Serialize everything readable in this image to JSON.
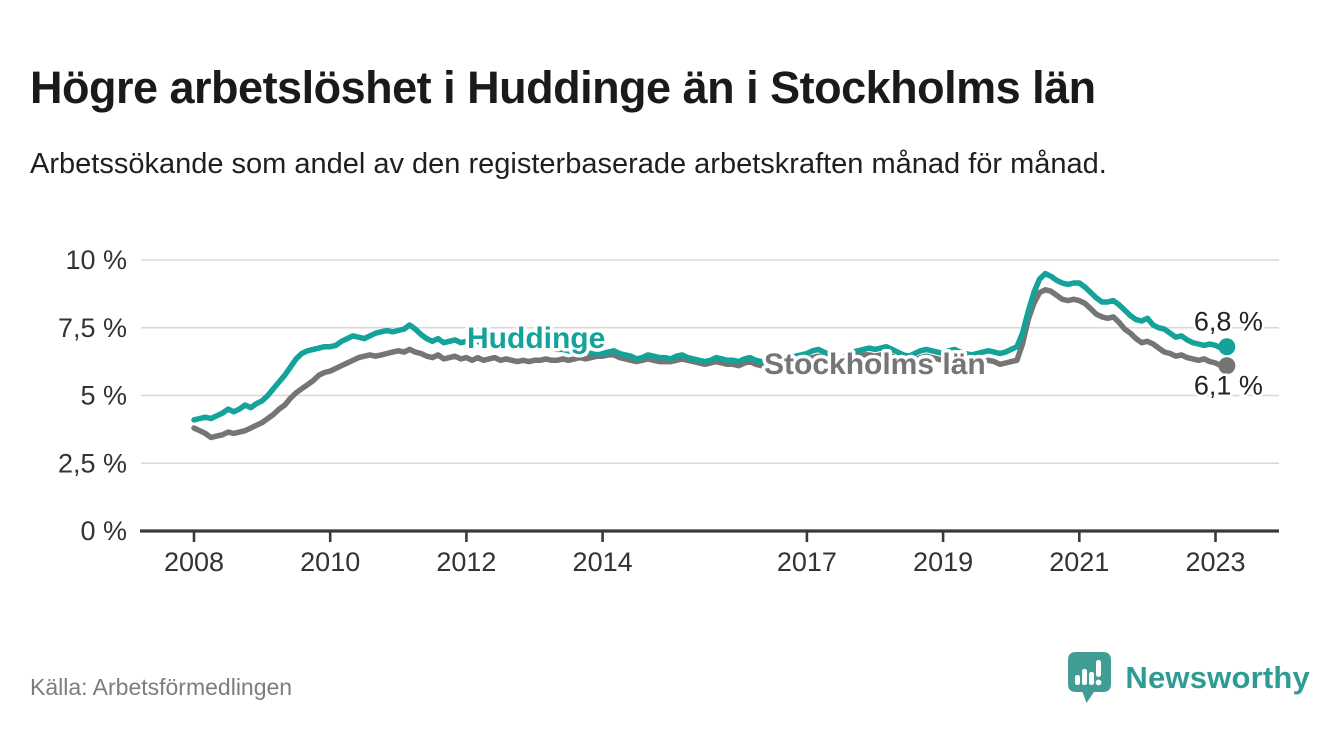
{
  "header": {
    "title": "Högre arbetslöshet i Huddinge än i Stockholms län",
    "subtitle": "Arbetssökande som andel av den registerbaserade arbetskraften månad för månad."
  },
  "footer": {
    "source": "Källa: Arbetsförmedlingen",
    "brand": "Newsworthy"
  },
  "colors": {
    "huddinge": "#14a39a",
    "stockholm": "#757575",
    "grid": "#d8d8d8",
    "axis": "#3a3a3a",
    "tick_text": "#333333",
    "value_text": "#222222",
    "brand_teal": "#2f9c94"
  },
  "chart_data": {
    "type": "line",
    "title": "Högre arbetslöshet i Huddinge än i Stockholms län",
    "subtitle": "Arbetssökande som andel av den registerbaserade arbetskraften månad för månad.",
    "unit": "%",
    "frequency": "monthly",
    "start": "2008-01",
    "end": "2023-03",
    "ylim": [
      0,
      10
    ],
    "grid": "horizontal",
    "legend_position": "inline-labels",
    "y_ticks": [
      {
        "value": 0,
        "label": "0 %"
      },
      {
        "value": 2.5,
        "label": "2,5 %"
      },
      {
        "value": 5,
        "label": "5 %"
      },
      {
        "value": 7.5,
        "label": "7,5 %"
      },
      {
        "value": 10,
        "label": "10 %"
      }
    ],
    "x_tick_years": [
      2008,
      2010,
      2012,
      2014,
      2017,
      2019,
      2021,
      2023
    ],
    "series": [
      {
        "name": "Huddinge",
        "color_key": "huddinge",
        "end_label": "6,8 %",
        "values": [
          4.1,
          4.15,
          4.2,
          4.15,
          4.25,
          4.35,
          4.5,
          4.4,
          4.5,
          4.65,
          4.55,
          4.7,
          4.8,
          5.0,
          5.25,
          5.5,
          5.75,
          6.05,
          6.35,
          6.55,
          6.65,
          6.7,
          6.75,
          6.8,
          6.8,
          6.85,
          7.0,
          7.1,
          7.2,
          7.15,
          7.1,
          7.2,
          7.3,
          7.35,
          7.4,
          7.35,
          7.4,
          7.45,
          7.6,
          7.45,
          7.25,
          7.1,
          7.0,
          7.1,
          6.95,
          7.0,
          7.05,
          6.95,
          7.0,
          6.95,
          7.0,
          6.9,
          6.9,
          6.95,
          6.9,
          6.95,
          6.9,
          6.85,
          6.9,
          6.85,
          6.85,
          6.8,
          6.8,
          6.75,
          6.7,
          6.7,
          6.65,
          6.6,
          6.6,
          6.6,
          6.55,
          6.55,
          6.55,
          6.6,
          6.65,
          6.55,
          6.5,
          6.45,
          6.35,
          6.4,
          6.5,
          6.45,
          6.4,
          6.4,
          6.35,
          6.45,
          6.5,
          6.4,
          6.35,
          6.3,
          6.25,
          6.3,
          6.4,
          6.35,
          6.3,
          6.3,
          6.25,
          6.35,
          6.4,
          6.3,
          6.25,
          6.2,
          6.25,
          6.35,
          6.45,
          6.4,
          6.45,
          6.5,
          6.55,
          6.65,
          6.7,
          6.6,
          6.5,
          6.4,
          6.35,
          6.45,
          6.6,
          6.65,
          6.7,
          6.75,
          6.7,
          6.75,
          6.8,
          6.7,
          6.6,
          6.5,
          6.45,
          6.55,
          6.65,
          6.7,
          6.65,
          6.6,
          6.55,
          6.65,
          6.7,
          6.6,
          6.55,
          6.5,
          6.55,
          6.6,
          6.65,
          6.6,
          6.55,
          6.6,
          6.7,
          6.8,
          7.3,
          8.1,
          8.8,
          9.3,
          9.5,
          9.4,
          9.25,
          9.15,
          9.1,
          9.15,
          9.15,
          9.0,
          8.8,
          8.6,
          8.45,
          8.45,
          8.5,
          8.35,
          8.15,
          7.95,
          7.8,
          7.75,
          7.85,
          7.6,
          7.5,
          7.45,
          7.3,
          7.15,
          7.2,
          7.05,
          6.95,
          6.9,
          6.85,
          6.9,
          6.85,
          6.75,
          6.8
        ]
      },
      {
        "name": "Stockholms län",
        "color_key": "stockholm",
        "end_label": "6,1 %",
        "values": [
          3.8,
          3.7,
          3.6,
          3.45,
          3.5,
          3.55,
          3.65,
          3.6,
          3.65,
          3.7,
          3.8,
          3.9,
          4.0,
          4.15,
          4.3,
          4.5,
          4.65,
          4.9,
          5.1,
          5.25,
          5.4,
          5.55,
          5.75,
          5.85,
          5.9,
          6.0,
          6.1,
          6.2,
          6.3,
          6.4,
          6.45,
          6.5,
          6.45,
          6.5,
          6.55,
          6.6,
          6.65,
          6.6,
          6.7,
          6.6,
          6.55,
          6.45,
          6.4,
          6.5,
          6.35,
          6.4,
          6.45,
          6.35,
          6.4,
          6.3,
          6.4,
          6.3,
          6.35,
          6.4,
          6.3,
          6.35,
          6.3,
          6.25,
          6.3,
          6.25,
          6.3,
          6.3,
          6.35,
          6.3,
          6.3,
          6.35,
          6.3,
          6.35,
          6.4,
          6.35,
          6.4,
          6.45,
          6.45,
          6.5,
          6.5,
          6.4,
          6.35,
          6.3,
          6.25,
          6.3,
          6.35,
          6.3,
          6.25,
          6.25,
          6.25,
          6.3,
          6.35,
          6.3,
          6.25,
          6.2,
          6.15,
          6.2,
          6.25,
          6.2,
          6.15,
          6.15,
          6.1,
          6.2,
          6.25,
          6.15,
          6.1,
          6.05,
          6.1,
          6.15,
          6.25,
          6.2,
          6.25,
          6.3,
          6.35,
          6.4,
          6.45,
          6.4,
          6.3,
          6.25,
          6.2,
          6.3,
          6.4,
          6.45,
          6.5,
          6.5,
          6.45,
          6.5,
          6.55,
          6.45,
          6.35,
          6.3,
          6.25,
          6.3,
          6.4,
          6.45,
          6.4,
          6.35,
          6.3,
          6.35,
          6.4,
          6.3,
          6.25,
          6.2,
          6.2,
          6.25,
          6.3,
          6.25,
          6.15,
          6.2,
          6.25,
          6.3,
          6.9,
          7.8,
          8.4,
          8.8,
          8.9,
          8.85,
          8.7,
          8.55,
          8.5,
          8.55,
          8.5,
          8.4,
          8.2,
          8.0,
          7.9,
          7.85,
          7.9,
          7.7,
          7.45,
          7.3,
          7.1,
          6.95,
          7.0,
          6.9,
          6.75,
          6.6,
          6.55,
          6.45,
          6.5,
          6.4,
          6.35,
          6.3,
          6.35,
          6.25,
          6.2,
          6.1,
          6.1
        ]
      }
    ]
  }
}
